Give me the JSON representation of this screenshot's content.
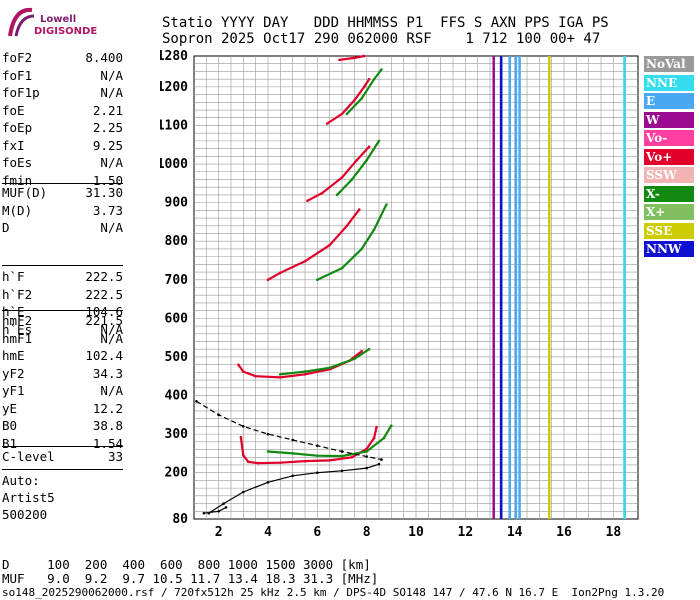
{
  "logo": {
    "line1": "Lowell",
    "line2": "DIGISONDE"
  },
  "header": {
    "row1": "Statio YYYY DAY   DDD HHMMSS P1  FFS S AXN PPS IGA PS",
    "row2": "Sopron 2025 Oct17 290 062000 RSF    1 712 100 00+ 47"
  },
  "params_group1": [
    {
      "k": "foF2",
      "v": "8.400"
    },
    {
      "k": "foF1",
      "v": "N/A"
    },
    {
      "k": "foF1p",
      "v": "N/A"
    },
    {
      "k": "foE",
      "v": "2.21"
    },
    {
      "k": "foEp",
      "v": "2.25"
    },
    {
      "k": "fxI",
      "v": "9.25"
    },
    {
      "k": "foEs",
      "v": "N/A"
    },
    {
      "k": "fmin",
      "v": "1.50"
    }
  ],
  "params_group2": [
    {
      "k": "MUF(D)",
      "v": "31.30"
    },
    {
      "k": "M(D)",
      "v": "3.73"
    },
    {
      "k": "D",
      "v": "N/A"
    }
  ],
  "params_group3": [
    {
      "k": "h`F",
      "v": "222.5"
    },
    {
      "k": "h`F2",
      "v": "222.5"
    },
    {
      "k": "h`E",
      "v": "104.6"
    },
    {
      "k": "h`Es",
      "v": "N/A"
    }
  ],
  "params_group4": [
    {
      "k": "hmF2",
      "v": "221.5"
    },
    {
      "k": "hmF1",
      "v": "N/A"
    },
    {
      "k": "hmE",
      "v": "102.4"
    },
    {
      "k": "yF2",
      "v": "34.3"
    },
    {
      "k": "yF1",
      "v": "N/A"
    },
    {
      "k": "yE",
      "v": "12.2"
    },
    {
      "k": "B0",
      "v": "38.8"
    },
    {
      "k": "B1",
      "v": "1.54"
    }
  ],
  "params_group5": [
    {
      "k": "C-level",
      "v": "33"
    }
  ],
  "notes": {
    "auto": "Auto:",
    "artist": "Artist5",
    "code": "500200"
  },
  "legend": [
    {
      "label": "NoVal",
      "color": "#9a9a9a"
    },
    {
      "label": "NNE",
      "color": "#33ddee"
    },
    {
      "label": "E",
      "color": "#4aa8f0"
    },
    {
      "label": "W",
      "color": "#9a0a8e"
    },
    {
      "label": "Vo-",
      "color": "#ff3fa0"
    },
    {
      "label": "Vo+",
      "color": "#e0002a"
    },
    {
      "label": "SSW",
      "color": "#f2b3b3"
    },
    {
      "label": "X-",
      "color": "#128a12"
    },
    {
      "label": "X+",
      "color": "#80c060"
    },
    {
      "label": "SSE",
      "color": "#cccc00"
    },
    {
      "label": "NNW",
      "color": "#1010d0"
    }
  ],
  "chart_data": {
    "type": "scatter",
    "title": "",
    "xlabel": "",
    "ylabel": "",
    "xlim": [
      1,
      19
    ],
    "ylim": [
      80,
      1280
    ],
    "x_ticks": [
      2,
      4,
      6,
      8,
      10,
      12,
      14,
      16,
      18
    ],
    "y_ticks": [
      80,
      200,
      300,
      400,
      500,
      600,
      700,
      800,
      900,
      1000,
      1100,
      1200,
      1280
    ],
    "grid": true,
    "series": [
      {
        "color": "#e0002a",
        "points": [
          [
            2.9,
            292
          ],
          [
            3.0,
            245
          ],
          [
            3.2,
            228
          ],
          [
            3.6,
            225
          ],
          [
            4.5,
            226
          ],
          [
            5.5,
            230
          ],
          [
            6.5,
            232
          ],
          [
            7.4,
            240
          ],
          [
            8.0,
            262
          ],
          [
            8.3,
            290
          ],
          [
            8.4,
            318
          ]
        ]
      },
      {
        "color": "#128a12",
        "points": [
          [
            4.0,
            255
          ],
          [
            5.0,
            250
          ],
          [
            6.0,
            244
          ],
          [
            7.0,
            243
          ],
          [
            8.0,
            255
          ],
          [
            8.7,
            290
          ],
          [
            9.0,
            322
          ]
        ]
      },
      {
        "color": "#e0002a",
        "points": [
          [
            2.8,
            480
          ],
          [
            3.0,
            462
          ],
          [
            3.5,
            450
          ],
          [
            4.5,
            447
          ],
          [
            5.5,
            455
          ],
          [
            6.5,
            468
          ],
          [
            7.3,
            490
          ],
          [
            7.8,
            515
          ]
        ]
      },
      {
        "color": "#128a12",
        "points": [
          [
            4.5,
            455
          ],
          [
            5.5,
            462
          ],
          [
            6.5,
            472
          ],
          [
            7.5,
            495
          ],
          [
            8.1,
            520
          ]
        ]
      },
      {
        "color": "#e0002a",
        "points": [
          [
            4.0,
            700
          ],
          [
            4.5,
            718
          ],
          [
            5.5,
            748
          ],
          [
            6.5,
            790
          ],
          [
            7.2,
            840
          ],
          [
            7.7,
            882
          ]
        ]
      },
      {
        "color": "#128a12",
        "points": [
          [
            6.0,
            700
          ],
          [
            7.0,
            730
          ],
          [
            7.8,
            780
          ],
          [
            8.3,
            830
          ],
          [
            8.8,
            895
          ]
        ]
      },
      {
        "color": "#e0002a",
        "points": [
          [
            5.6,
            905
          ],
          [
            6.2,
            925
          ],
          [
            7.0,
            965
          ],
          [
            7.6,
            1010
          ],
          [
            8.1,
            1045
          ]
        ]
      },
      {
        "color": "#128a12",
        "points": [
          [
            6.8,
            920
          ],
          [
            7.4,
            960
          ],
          [
            8.0,
            1010
          ],
          [
            8.5,
            1060
          ]
        ]
      },
      {
        "color": "#e0002a",
        "points": [
          [
            6.4,
            1105
          ],
          [
            7.0,
            1130
          ],
          [
            7.5,
            1165
          ],
          [
            7.9,
            1200
          ],
          [
            8.1,
            1220
          ]
        ]
      },
      {
        "color": "#128a12",
        "points": [
          [
            7.2,
            1130
          ],
          [
            7.8,
            1170
          ],
          [
            8.3,
            1220
          ],
          [
            8.6,
            1245
          ]
        ]
      },
      {
        "color": "#e0002a",
        "points": [
          [
            6.9,
            1270
          ],
          [
            7.5,
            1275
          ],
          [
            7.9,
            1280
          ]
        ]
      },
      {
        "color": "#000000",
        "points": [
          [
            1.6,
            95
          ],
          [
            2.2,
            120
          ],
          [
            3.0,
            150
          ],
          [
            4.0,
            175
          ],
          [
            5.0,
            192
          ],
          [
            6.0,
            200
          ],
          [
            7.0,
            205
          ],
          [
            8.0,
            212
          ],
          [
            8.5,
            222
          ]
        ]
      },
      {
        "color": "#000000",
        "points": [
          [
            1.4,
            95
          ],
          [
            2.0,
            100
          ],
          [
            2.3,
            110
          ]
        ]
      },
      {
        "color": "#000000",
        "dash": true,
        "points": [
          [
            1.1,
            385
          ],
          [
            2.0,
            350
          ],
          [
            3.0,
            320
          ],
          [
            4.0,
            300
          ],
          [
            5.0,
            285
          ],
          [
            6.0,
            270
          ],
          [
            7.0,
            255
          ],
          [
            8.0,
            242
          ],
          [
            8.6,
            234
          ]
        ]
      }
    ],
    "vertical_lines": [
      {
        "x": 13.15,
        "color": "#9a0a8e"
      },
      {
        "x": 13.45,
        "color": "#1010d0"
      },
      {
        "x": 13.8,
        "color": "#4aa8f0"
      },
      {
        "x": 14.05,
        "color": "#4aa8f0"
      },
      {
        "x": 14.2,
        "color": "#4aa8f0"
      },
      {
        "x": 15.4,
        "color": "#cccc00"
      },
      {
        "x": 18.45,
        "color": "#33ddee"
      }
    ]
  },
  "footer": {
    "line1": "D     100  200  400  600  800 1000 1500 3000 [km]",
    "line2": "MUF   9.0  9.2  9.7 10.5 11.7 13.4 18.3 31.3 [MHz]",
    "line3": "so148_2025290062000.rsf / 720fx512h 25 kHz 2.5 km / DPS-4D SO148 147 / 47.6 N 16.7 E  Ion2Png 1.3.20"
  }
}
